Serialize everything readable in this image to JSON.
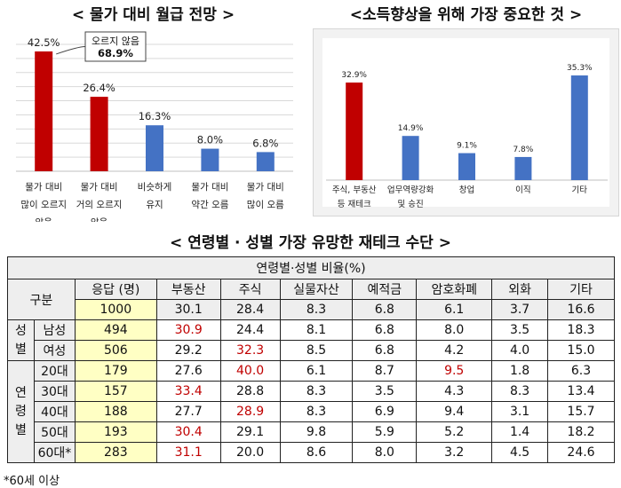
{
  "charts": [
    {
      "type": "bar",
      "title": "< 물가 대비 월급 전망 >",
      "categories": [
        [
          "물가 대비",
          "많이 오르지",
          "않음"
        ],
        [
          "물가 대비",
          "거의 오르지",
          "않음"
        ],
        [
          "비슷하게",
          "유지"
        ],
        [
          "물가 대비",
          "약간 오름"
        ],
        [
          "물가 대비",
          "많이 오름"
        ]
      ],
      "values": [
        42.5,
        26.4,
        16.3,
        8.0,
        6.8
      ],
      "value_labels": [
        "42.5%",
        "26.4%",
        "16.3%",
        "8.0%",
        "6.8%"
      ],
      "colors": [
        "#c00000",
        "#c00000",
        "#4472c4",
        "#4472c4",
        "#4472c4"
      ],
      "ylim": [
        0,
        45
      ],
      "grid": true,
      "annotation": {
        "line1": "오르지 않음",
        "line2": "68.9%"
      }
    },
    {
      "type": "bar",
      "title": "<소득향상을 위해 가장 중요한 것 >",
      "categories": [
        [
          "주식, 부동산",
          "등 재테크"
        ],
        [
          "업무역량강화",
          "및 승진"
        ],
        [
          "창업"
        ],
        [
          "이직"
        ],
        [
          "기타"
        ]
      ],
      "values": [
        32.9,
        14.9,
        9.1,
        7.8,
        35.3
      ],
      "value_labels": [
        "32.9%",
        "14.9%",
        "9.1%",
        "7.8%",
        "35.3%"
      ],
      "colors": [
        "#c00000",
        "#4472c4",
        "#4472c4",
        "#4472c4",
        "#4472c4"
      ],
      "ylim": [
        0,
        38
      ],
      "grid": false
    }
  ],
  "chart_data": {
    "type": "table",
    "title": "< 연령별 · 성별 가장 유망한 재테크 수단 >",
    "super_header": "연령별·성별 비율(%)",
    "header": {
      "group": "구분",
      "columns": [
        "응답 (명)",
        "부동산",
        "주식",
        "실물자산",
        "예적금",
        "암호화폐",
        "외화",
        "기타"
      ]
    },
    "total": [
      "1000",
      "30.1",
      "28.4",
      "8.3",
      "6.8",
      "6.1",
      "3.7",
      "16.6"
    ],
    "sections": [
      {
        "name": "성별",
        "rows": [
          {
            "label": "남성",
            "values": [
              "494",
              "30.9",
              "24.4",
              "8.1",
              "6.8",
              "8.0",
              "3.5",
              "18.3"
            ],
            "highlight": [
              1
            ]
          },
          {
            "label": "여성",
            "values": [
              "506",
              "29.2",
              "32.3",
              "8.5",
              "6.8",
              "4.2",
              "4.0",
              "15.0"
            ],
            "highlight": [
              2
            ]
          }
        ]
      },
      {
        "name": "연령별",
        "rows": [
          {
            "label": "20대",
            "values": [
              "179",
              "27.6",
              "40.0",
              "6.1",
              "8.7",
              "9.5",
              "1.8",
              "6.3"
            ],
            "highlight": [
              2,
              5
            ]
          },
          {
            "label": "30대",
            "values": [
              "157",
              "33.4",
              "28.8",
              "8.3",
              "3.5",
              "4.3",
              "8.3",
              "13.4"
            ],
            "highlight": [
              1
            ]
          },
          {
            "label": "40대",
            "values": [
              "188",
              "27.7",
              "28.9",
              "8.3",
              "6.9",
              "9.4",
              "3.1",
              "15.7"
            ],
            "highlight": [
              2
            ]
          },
          {
            "label": "50대",
            "values": [
              "193",
              "30.4",
              "29.1",
              "9.8",
              "5.9",
              "5.2",
              "1.4",
              "18.2"
            ],
            "highlight": [
              1
            ]
          },
          {
            "label": "60대*",
            "values": [
              "283",
              "31.1",
              "20.0",
              "8.6",
              "8.0",
              "3.2",
              "4.5",
              "24.6"
            ],
            "highlight": [
              1
            ]
          }
        ]
      }
    ],
    "footnote": "*60세 이상"
  }
}
